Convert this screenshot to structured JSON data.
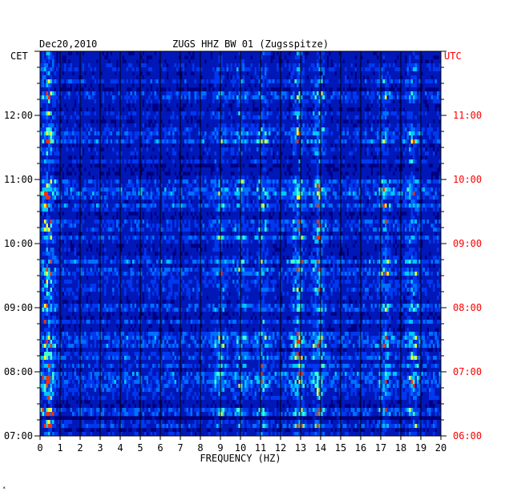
{
  "header": {
    "date": "Dec20,2010",
    "station": "ZUGS HHZ BW 01 (Zugsspitze)"
  },
  "corner_mark": "*",
  "colors": {
    "background": "#000080",
    "low": "#0020d0",
    "mid": "#00ffff",
    "high": "#ffff00",
    "peak": "#ff0000",
    "grid": "#000000",
    "utc_text": "#ff0000",
    "cet_text": "#000000"
  },
  "chart_data": {
    "type": "heatmap",
    "title": "ZUGS HHZ BW 01 (Zugsspitze)",
    "xlabel": "FREQUENCY (HZ)",
    "xlim": [
      0,
      20
    ],
    "x_ticks": [
      "0",
      "1",
      "2",
      "3",
      "4",
      "5",
      "6",
      "7",
      "8",
      "9",
      "10",
      "11",
      "12",
      "13",
      "14",
      "15",
      "16",
      "17",
      "18",
      "19",
      "20"
    ],
    "left_axis": {
      "label": "CET",
      "ticks": [
        "12:00",
        "11:00",
        "10:00",
        "09:00",
        "08:00",
        "07:00"
      ],
      "color": "#000000"
    },
    "right_axis": {
      "label": "UTC",
      "ticks": [
        "11:00",
        "10:00",
        "09:00",
        "08:00",
        "07:00",
        "06:00"
      ],
      "color": "#ff0000"
    },
    "time_range_cet": [
      "07:00",
      "13:00"
    ],
    "rows": 96,
    "energy_bands_hz": [
      {
        "center": 0.4,
        "intensity": 1.0
      },
      {
        "center": 9.0,
        "intensity": 0.45
      },
      {
        "center": 10.0,
        "intensity": 0.45
      },
      {
        "center": 11.1,
        "intensity": 0.55
      },
      {
        "center": 12.9,
        "intensity": 0.8
      },
      {
        "center": 13.9,
        "intensity": 0.8
      },
      {
        "center": 17.2,
        "intensity": 0.55
      },
      {
        "center": 18.6,
        "intensity": 0.6
      }
    ]
  }
}
